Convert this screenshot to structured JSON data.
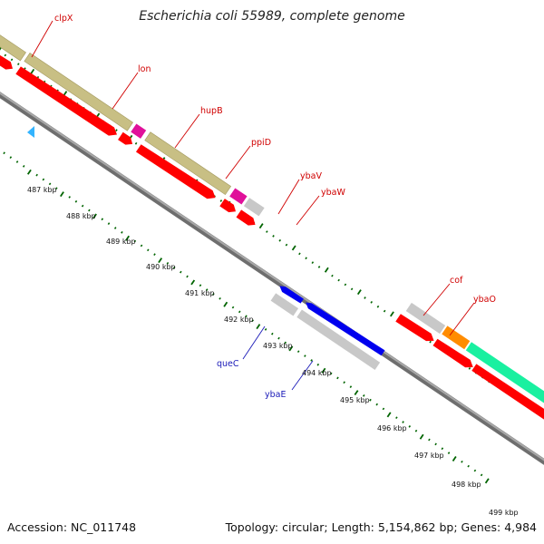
{
  "title": "Escherichia coli 55989, complete genome",
  "footer": {
    "accession": "Accession: NC_011748",
    "summary": "Topology: circular; Length: 5,154,862 bp; Genes: 4,984"
  },
  "ticks": [
    "487 kbp",
    "488 kbp",
    "489 kbp",
    "490 kbp",
    "491 kbp",
    "492 kbp",
    "493 kbp",
    "494 kbp",
    "495 kbp",
    "496 kbp",
    "497 kbp",
    "498 kbp",
    "499 kbp"
  ],
  "genes_top": [
    "clpX",
    "lon",
    "hupB",
    "ppiD",
    "ybaV",
    "ybaW",
    "cof",
    "ybaO"
  ],
  "genes_bottom": [
    "queC",
    "ybaE"
  ],
  "colors": {
    "cog_khaki": "#c8bf84",
    "cog_magenta": "#e0109a",
    "cog_gray": "#c8c8c8",
    "cog_orange": "#ff8c00",
    "cog_mint": "#19f0a0",
    "cds_red": "#ff0000",
    "cds_blue": "#0000ee",
    "backbone": "#888888",
    "tick_green": "#006400",
    "label_red": "#d00000",
    "label_blue": "#1a1ab8",
    "marker_cyan": "#33b4ff"
  }
}
